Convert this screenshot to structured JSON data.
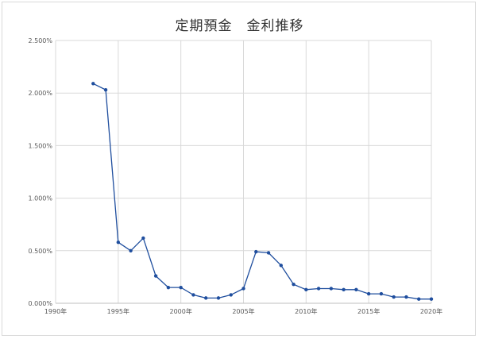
{
  "chart_data": {
    "type": "line",
    "title": "定期預金　金利推移",
    "xlabel": "",
    "ylabel": "",
    "xlim": [
      1990,
      2020
    ],
    "ylim": [
      0,
      0.025
    ],
    "x_ticks": [
      1990,
      1995,
      2000,
      2005,
      2010,
      2015,
      2020
    ],
    "x_tick_labels": [
      "1990年",
      "1995年",
      "2000年",
      "2005年",
      "2010年",
      "2015年",
      "2020年"
    ],
    "y_ticks": [
      0,
      0.005,
      0.01,
      0.015,
      0.02,
      0.025
    ],
    "y_tick_labels": [
      "0.000%",
      "0.500%",
      "1.000%",
      "1.500%",
      "2.000%",
      "2.500%"
    ],
    "grid": true,
    "legend": "none",
    "series_color": "#1f4e9e",
    "x": [
      1993,
      1994,
      1995,
      1996,
      1997,
      1998,
      1999,
      2000,
      2001,
      2002,
      2003,
      2004,
      2005,
      2006,
      2007,
      2008,
      2009,
      2010,
      2011,
      2012,
      2013,
      2014,
      2015,
      2016,
      2017,
      2018,
      2019,
      2020
    ],
    "values": [
      0.0209,
      0.0203,
      0.0058,
      0.005,
      0.0062,
      0.0026,
      0.0015,
      0.0015,
      0.0008,
      0.0005,
      0.0005,
      0.0008,
      0.0014,
      0.0049,
      0.0048,
      0.0036,
      0.0018,
      0.0013,
      0.0014,
      0.0014,
      0.0013,
      0.0013,
      0.0009,
      0.0009,
      0.0006,
      0.0006,
      0.0004,
      0.0004
    ]
  }
}
